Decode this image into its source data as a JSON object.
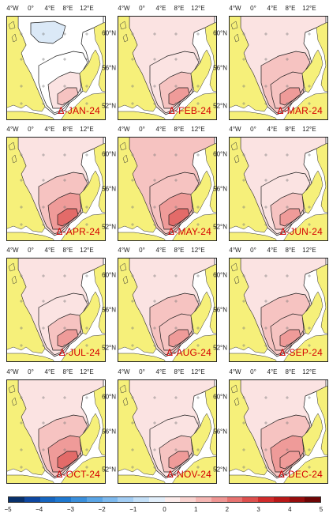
{
  "lon_labels": [
    "4°W",
    "0°",
    "4°E",
    "8°E",
    "12°E"
  ],
  "lat_labels": [
    "60°N",
    "56°N",
    "52°N"
  ],
  "panels": [
    {
      "label": "Δ-JAN-24",
      "anomaly_level": 0.2
    },
    {
      "label": "Δ-FEB-24",
      "anomaly_level": 1.4
    },
    {
      "label": "Δ-MAR-24",
      "anomaly_level": 1.6
    },
    {
      "label": "Δ-APR-24",
      "anomaly_level": 2.0
    },
    {
      "label": "Δ-MAY-24",
      "anomaly_level": 2.4
    },
    {
      "label": "Δ-JUN-24",
      "anomaly_level": 1.4
    },
    {
      "label": "Δ-JUL-24",
      "anomaly_level": 1.3
    },
    {
      "label": "Δ-AUG-24",
      "anomaly_level": 1.6
    },
    {
      "label": "Δ-SEP-24",
      "anomaly_level": 1.5
    },
    {
      "label": "Δ-OCT-24",
      "anomaly_level": 1.9
    },
    {
      "label": "Δ-NOV-24",
      "anomaly_level": 1.4
    },
    {
      "label": "Δ-DEC-24",
      "anomaly_level": 1.8
    }
  ],
  "colorbar": {
    "ticks": [
      "−5",
      "−4",
      "−3",
      "−2",
      "−1",
      "0",
      "1",
      "2",
      "3",
      "4",
      "5"
    ],
    "min": -5,
    "max": 5,
    "colors": [
      "#08306b",
      "#0d47a1",
      "#1565c0",
      "#1e78d0",
      "#3a8fdc",
      "#5aa5e6",
      "#7db9ee",
      "#a2cdf4",
      "#c4e0f8",
      "#e2effb",
      "#fdeceb",
      "#f9d3d0",
      "#f5b6b3",
      "#ef9593",
      "#e77370",
      "#dd4f4d",
      "#d02b2b",
      "#b81818",
      "#960d0d",
      "#6e0505"
    ]
  },
  "colors": {
    "land": "#f6f07a",
    "sea_low": "#ffffff",
    "contour": "#1a1a1a",
    "label_red": "#d40000"
  }
}
